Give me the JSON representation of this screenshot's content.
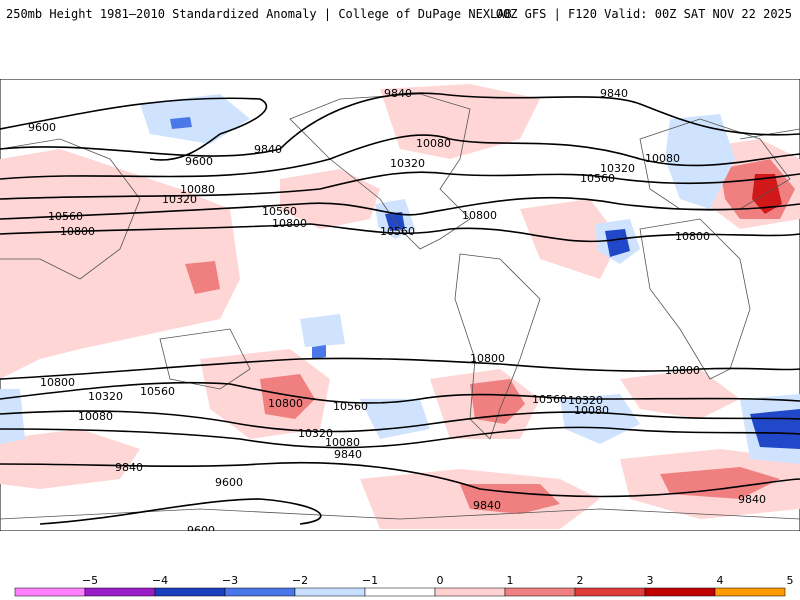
{
  "header": {
    "title": "250mb Height 1981–2010 Standardized Anomaly | College of DuPage NEXLAB",
    "run_info": "00Z GFS | F120 Valid: 00Z SAT NOV 22 2025"
  },
  "contours": {
    "9600": "9600",
    "9840": "9840",
    "10080": "10080",
    "10320": "10320",
    "10560": "10560",
    "10800": "10800"
  },
  "colorbar": {
    "ticks": [
      "−5",
      "−4",
      "−3",
      "−2",
      "−1",
      "0",
      "1",
      "2",
      "3",
      "4",
      "5"
    ],
    "colors": [
      "#ff80ff",
      "#9a1cc8",
      "#1a3fbf",
      "#4a78e8",
      "#c8e0ff",
      "#ffffff",
      "#ffd0d0",
      "#f08080",
      "#e03c3c",
      "#c00000",
      "#ff9a00"
    ]
  },
  "colors": {
    "neg_light": "#cfe3ff",
    "neg_mid": "#7aa7f0",
    "neg_dark": "#2048c8",
    "pos_light": "#ffd6d6",
    "pos_mid": "#f08080",
    "pos_dark": "#d01818",
    "contour": "#000000",
    "land": "#555555"
  }
}
